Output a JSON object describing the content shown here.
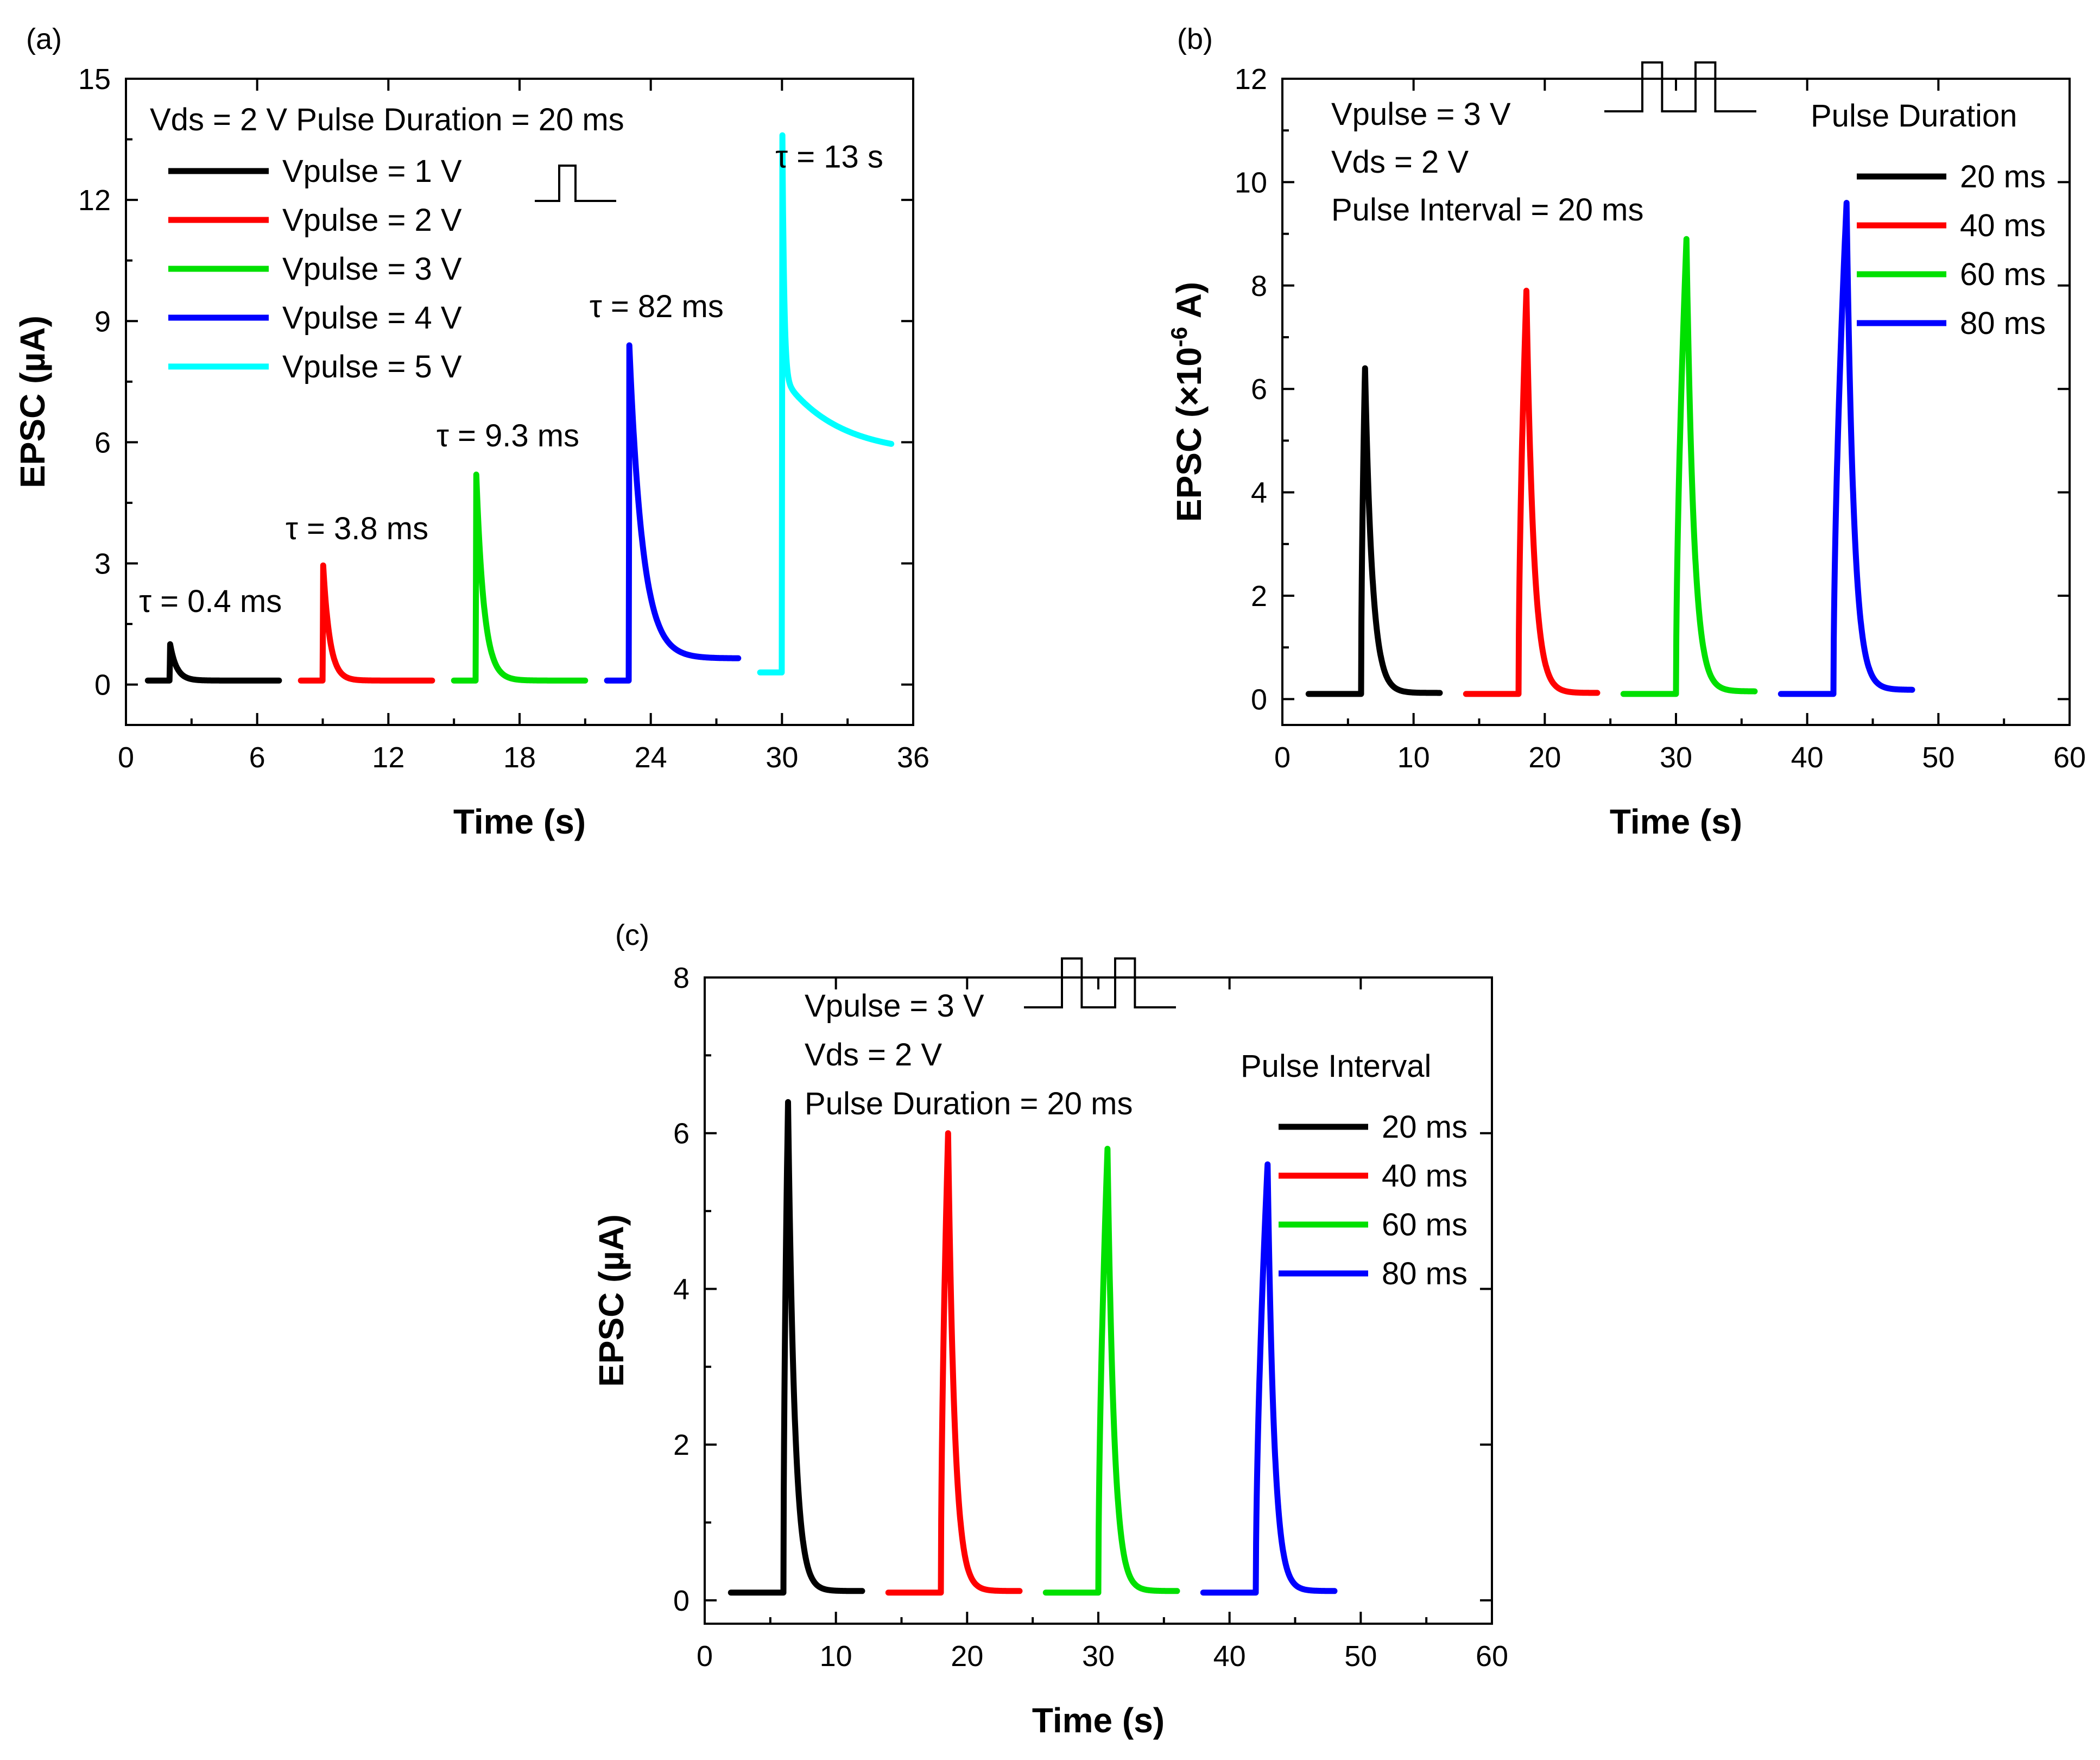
{
  "figure": {
    "panels": [
      {
        "id": "a",
        "panel_label": "(a)",
        "chart_data": {
          "type": "line",
          "xlabel": "Time (s)",
          "ylabel": "EPSC (µA)",
          "xlim": [
            0,
            36
          ],
          "ylim": [
            -1,
            15
          ],
          "xticks": [
            0,
            6,
            12,
            18,
            24,
            30,
            36
          ],
          "yticks": [
            0,
            3,
            6,
            9,
            12,
            15
          ],
          "info_lines": [
            "Vds = 2 V  Pulse Duration = 20 ms"
          ],
          "pulse_icon": "single-pulse",
          "legend_title": "",
          "series": [
            {
              "name": "Vpulse = 1 V",
              "color": "#000000",
              "x_start": 1.0,
              "x_end": 7.0,
              "pulse_time": 2.0,
              "baseline": 0.1,
              "peak": 1.0,
              "plateau": null,
              "final": 0.1,
              "tau": 0.3,
              "label": "τ = 0.4 ms",
              "label_x": 0.6,
              "label_y": 1.8
            },
            {
              "name": "Vpulse = 2 V",
              "color": "#ff0000",
              "x_start": 8.0,
              "x_end": 14.0,
              "pulse_time": 9.0,
              "baseline": 0.1,
              "peak": 2.95,
              "plateau": null,
              "final": 0.1,
              "tau": 0.3,
              "label": "τ = 3.8 ms",
              "label_x": 7.3,
              "label_y": 3.6
            },
            {
              "name": "Vpulse = 3 V",
              "color": "#00e000",
              "x_start": 15.0,
              "x_end": 21.0,
              "pulse_time": 16.0,
              "baseline": 0.1,
              "peak": 5.2,
              "plateau": null,
              "final": 0.1,
              "tau": 0.35,
              "label": "τ = 9.3 ms",
              "label_x": 14.2,
              "label_y": 5.9
            },
            {
              "name": "Vpulse = 4 V",
              "color": "#0000ff",
              "x_start": 22.0,
              "x_end": 28.0,
              "pulse_time": 23.0,
              "baseline": 0.1,
              "peak": 8.4,
              "plateau": null,
              "final": 0.65,
              "tau": 0.6,
              "label": "τ = 82 ms",
              "label_x": 21.2,
              "label_y": 9.1
            },
            {
              "name": "Vpulse = 5 V",
              "color": "#00ffff",
              "x_start": 29.0,
              "x_end": 35.0,
              "pulse_time": 30.0,
              "baseline": 0.3,
              "peak": 13.6,
              "plateau": 7.6,
              "final": 5.7,
              "tau": 2.5,
              "label": "τ = 13 s",
              "label_x": 29.7,
              "label_y": 12.8
            }
          ]
        }
      },
      {
        "id": "b",
        "panel_label": "(b)",
        "chart_data": {
          "type": "line",
          "xlabel": "Time (s)",
          "ylabel": "EPSC (×10",
          "ylabel_sup": "-6",
          "ylabel_suffix": " A)",
          "xlim": [
            0,
            60
          ],
          "ylim": [
            -0.5,
            12
          ],
          "xticks": [
            0,
            10,
            20,
            30,
            40,
            50,
            60
          ],
          "yticks": [
            0,
            2,
            4,
            6,
            8,
            10,
            12
          ],
          "info_lines": [
            "Vpulse = 3 V",
            "Vds = 2 V",
            "Pulse Interval = 20 ms"
          ],
          "pulse_icon": "double-pulse",
          "legend_title": "Pulse Duration",
          "series": [
            {
              "name": "20 ms",
              "color": "#000000",
              "x_start": 2.0,
              "x_end": 12.0,
              "pulse_time": 6.0,
              "baseline": 0.1,
              "peak": 6.4,
              "final": 0.12,
              "tau": 0.55,
              "rise": 0.3
            },
            {
              "name": "40 ms",
              "color": "#ff0000",
              "x_start": 14.0,
              "x_end": 24.0,
              "pulse_time": 18.0,
              "baseline": 0.1,
              "peak": 7.9,
              "final": 0.12,
              "tau": 0.55,
              "rise": 0.6
            },
            {
              "name": "60 ms",
              "color": "#00e000",
              "x_start": 26.0,
              "x_end": 36.0,
              "pulse_time": 30.0,
              "baseline": 0.1,
              "peak": 8.9,
              "final": 0.15,
              "tau": 0.55,
              "rise": 0.8
            },
            {
              "name": "80 ms",
              "color": "#0000ff",
              "x_start": 38.0,
              "x_end": 48.0,
              "pulse_time": 42.0,
              "baseline": 0.1,
              "peak": 9.6,
              "final": 0.18,
              "tau": 0.55,
              "rise": 1.0
            }
          ]
        }
      },
      {
        "id": "c",
        "panel_label": "(c)",
        "chart_data": {
          "type": "line",
          "xlabel": "Time (s)",
          "ylabel": "EPSC (µA)",
          "xlim": [
            0,
            60
          ],
          "ylim": [
            -0.3,
            8
          ],
          "xticks": [
            0,
            10,
            20,
            30,
            40,
            50,
            60
          ],
          "yticks": [
            0,
            2,
            4,
            6,
            8
          ],
          "info_lines": [
            "Vpulse = 3 V",
            "Vds = 2 V",
            "Pulse Duration = 20 ms"
          ],
          "pulse_icon": "double-pulse",
          "legend_title": "Pulse Interval",
          "series": [
            {
              "name": "20 ms",
              "color": "#000000",
              "x_start": 2.0,
              "x_end": 12.0,
              "pulse_time": 6.0,
              "baseline": 0.1,
              "peak": 6.4,
              "final": 0.12,
              "tau": 0.5,
              "rise": 0.35
            },
            {
              "name": "40 ms",
              "color": "#ff0000",
              "x_start": 14.0,
              "x_end": 24.0,
              "pulse_time": 18.0,
              "baseline": 0.1,
              "peak": 6.0,
              "final": 0.12,
              "tau": 0.5,
              "rise": 0.55
            },
            {
              "name": "60 ms",
              "color": "#00e000",
              "x_start": 26.0,
              "x_end": 36.0,
              "pulse_time": 30.0,
              "baseline": 0.1,
              "peak": 5.8,
              "final": 0.12,
              "tau": 0.5,
              "rise": 0.7
            },
            {
              "name": "80 ms",
              "color": "#0000ff",
              "x_start": 38.0,
              "x_end": 48.0,
              "pulse_time": 42.0,
              "baseline": 0.1,
              "peak": 5.6,
              "final": 0.12,
              "tau": 0.5,
              "rise": 0.9
            }
          ]
        }
      }
    ]
  }
}
